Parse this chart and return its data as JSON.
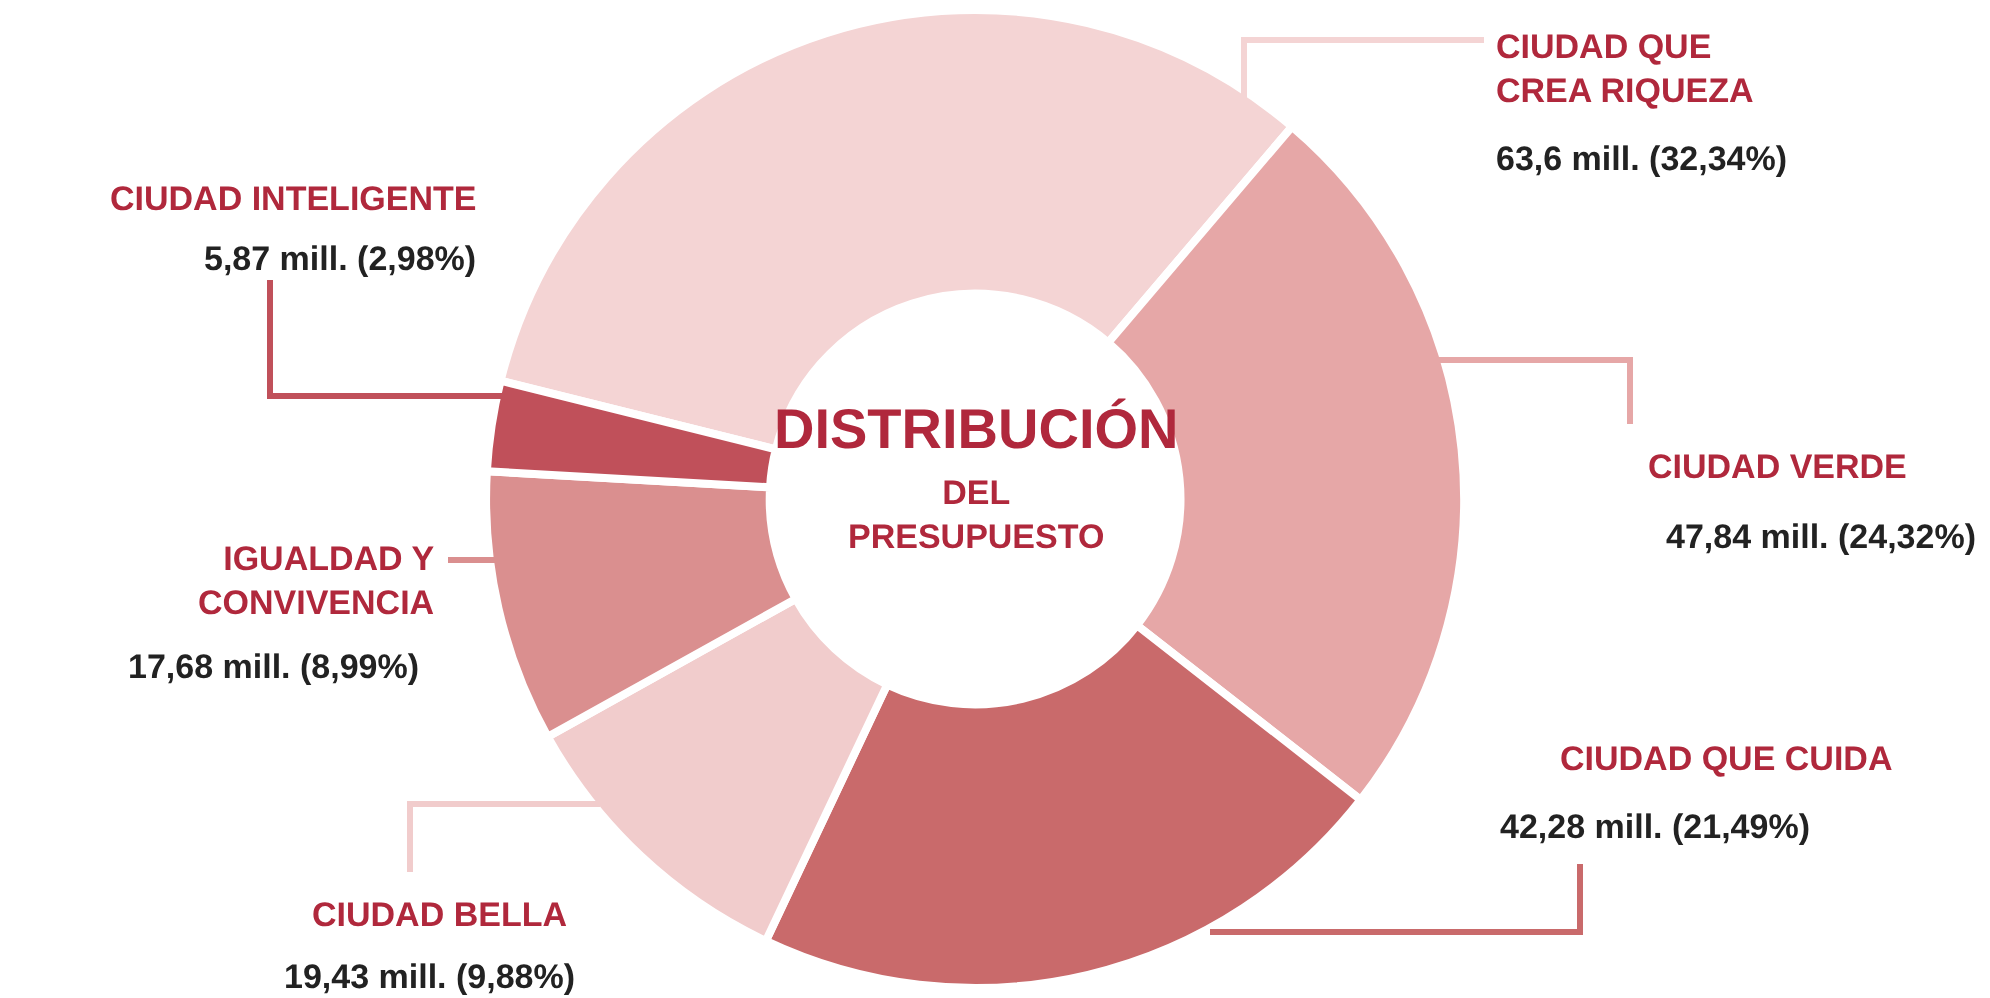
{
  "chart_data": {
    "type": "donut",
    "title": "DISTRIBUCIÓN",
    "subtitle": "DEL\nPRESUPUESTO",
    "categories": [
      "CIUDAD QUE\nCREA RIQUEZA",
      "CIUDAD VERDE",
      "CIUDAD QUE CUIDA",
      "CIUDAD BELLA",
      "IGUALDAD Y\nCONVIVENCIA",
      "CIUDAD INTELIGENTE"
    ],
    "values": [
      63.6,
      47.84,
      42.28,
      19.43,
      17.68,
      5.87
    ],
    "value_labels": [
      "63,6 mill. (32,34%)",
      "47,84 mill. (24,32%)",
      "42,28 mill. (21,49%)",
      "19,43 mill. (9,88%)",
      "17,68 mill. (8,99%)",
      "5,87 mill. (2,98%)"
    ],
    "colors": [
      "#f4d4d4",
      "#e6a7a7",
      "#c96a6b",
      "#f1cccc",
      "#da8f8f",
      "#c0505a"
    ],
    "legend": false
  }
}
